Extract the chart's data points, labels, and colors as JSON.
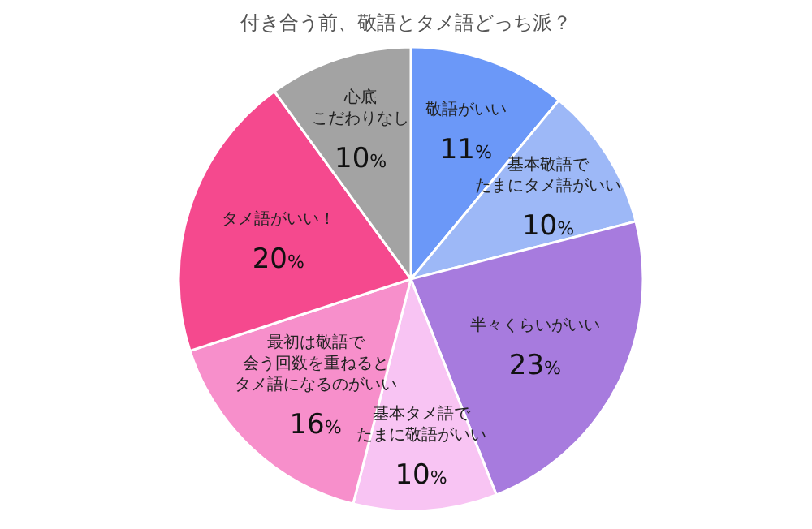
{
  "chart_data": {
    "type": "pie",
    "title": "付き合う前、敬語とタメ語どっち派？",
    "categories": [
      "敬語がいい",
      "基本敬語でたまにタメ語がいい",
      "半々くらいがいい",
      "基本タメ語でたまに敬語がいい",
      "最初は敬語で会う回数を重ねるとタメ語になるのがいい",
      "タメ語がいい！",
      "心底こだわりなし"
    ],
    "values": [
      11,
      10,
      23,
      10,
      16,
      20,
      10
    ],
    "value_labels": [
      "11%",
      "10%",
      "23%",
      "10%",
      "16%",
      "20%",
      "10%"
    ],
    "colors": [
      "#6b98f8",
      "#9db8f7",
      "#a77bde",
      "#f8c4f3",
      "#f78fcb",
      "#f5498e",
      "#a3a3a3"
    ],
    "legend": false
  }
}
